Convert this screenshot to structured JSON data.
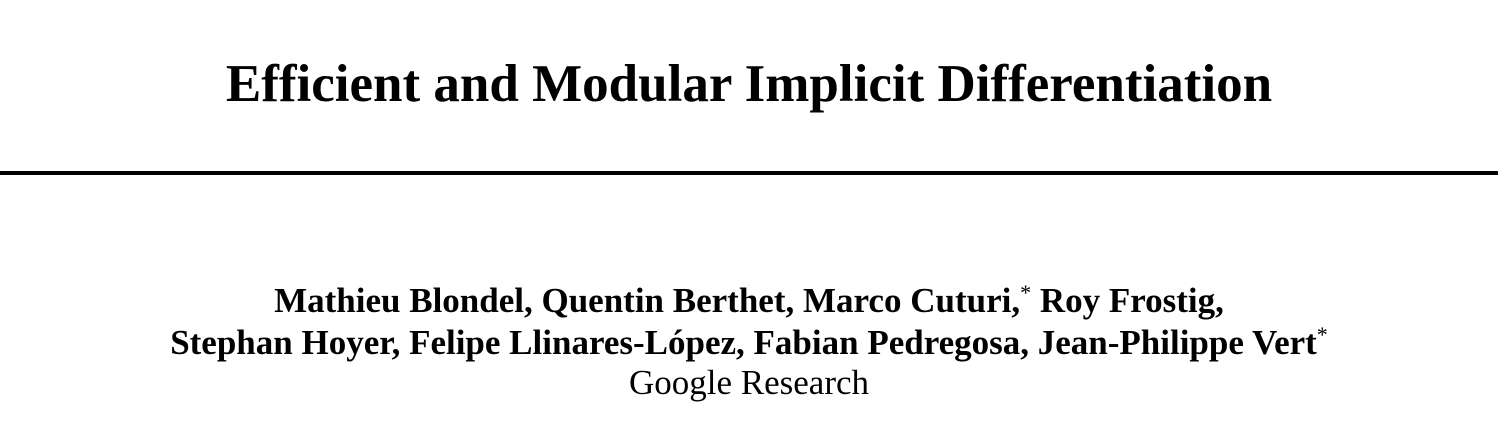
{
  "paper": {
    "title": "Efficient and Modular Implicit Differentiation",
    "authors_line1": {
      "before_mark": "Mathieu Blondel, Quentin Berthet, Marco Cuturi,",
      "mark": "*",
      "after_mark": " Roy Frostig,"
    },
    "authors_line2": {
      "text": "Stephan Hoyer, Felipe Llinares-López, Fabian Pedregosa, Jean-Philippe Vert",
      "mark": "*"
    },
    "affiliation": "Google Research"
  }
}
